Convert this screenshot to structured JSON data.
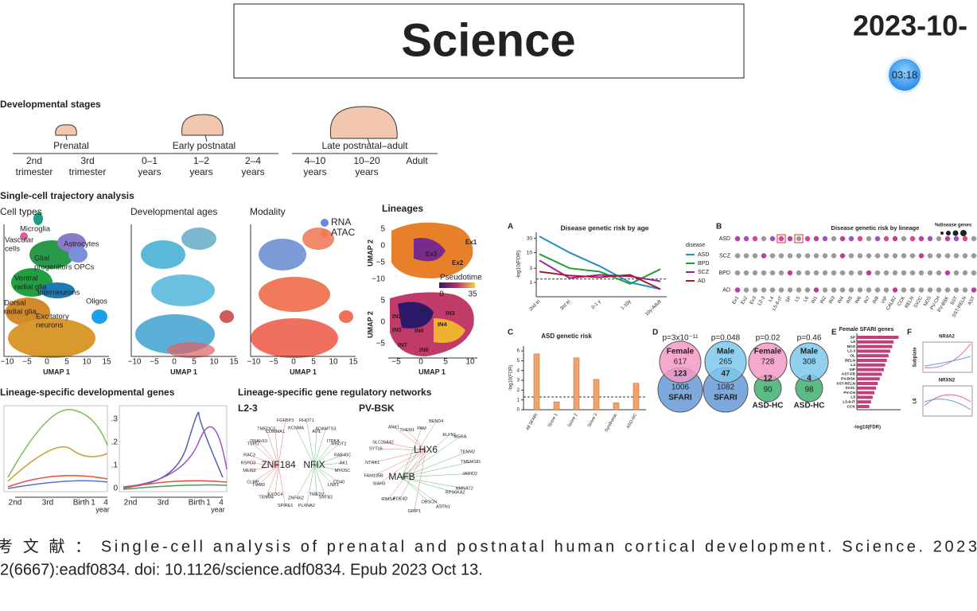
{
  "header": {
    "title": "Science",
    "date": "2023-10-",
    "timer": "03:18"
  },
  "stages": {
    "title": "Developmental stages",
    "groups": [
      {
        "label": "Prenatal",
        "items": [
          [
            "2nd",
            "trimester"
          ],
          [
            "3rd",
            "trimester"
          ]
        ]
      },
      {
        "label": "Early postnatal",
        "items": [
          [
            "0–1",
            "years"
          ],
          [
            "1–2",
            "years"
          ],
          [
            "2–4",
            "years"
          ]
        ]
      },
      {
        "label": "Late postnatal–adult",
        "items": [
          [
            "4–10",
            "years"
          ],
          [
            "10–20",
            "years"
          ],
          [
            "Adult"
          ]
        ]
      }
    ]
  },
  "trajectory": {
    "title": "Single-cell trajectory analysis",
    "panels": [
      "Cell types",
      "Developmental ages",
      "Modality",
      "Lineages"
    ],
    "cell_types": [
      [
        "Microglia"
      ],
      [
        "Vascular",
        "cells"
      ],
      [
        "Glial",
        "progenitors"
      ],
      [
        "Astrocytes"
      ],
      [
        "OPCs"
      ],
      [
        "Ventral",
        "radial glia"
      ],
      [
        "Interneurons"
      ],
      [
        "Oligos"
      ],
      [
        "Dorsal",
        "radial glia"
      ],
      [
        "Excitatory",
        "neurons"
      ]
    ],
    "modality": [
      "RNA",
      "ATAC"
    ],
    "umap_x": "UMAP 1",
    "umap_y": "UMAP 2",
    "umap_xticks": [
      "−10",
      "−5",
      "0",
      "5",
      "10",
      "15"
    ],
    "lineage_xticks": [
      "−5",
      "0",
      "5",
      "10"
    ],
    "lineage_top_yticks": [
      "5",
      "0",
      "−5",
      "−10"
    ],
    "lineage_bottom_yticks": [
      "5",
      "0",
      "−5"
    ],
    "lineage_top": [
      "Ex1",
      "Ex2",
      "Ex3"
    ],
    "lineage_bottom": [
      "IN1",
      "IN2",
      "IN3",
      "IN4",
      "IN5",
      "IN6",
      "IN7",
      "IN8"
    ],
    "pseudotime": {
      "label": "Pseudotime",
      "ticks": [
        "0",
        "35"
      ]
    }
  },
  "dev_genes": {
    "title": "Lineage-specific developmental genes",
    "xticks": [
      "2nd",
      "3rd",
      "Birth",
      "1",
      "4"
    ],
    "xunit": "year",
    "yticks": [
      ".3",
      ".2",
      ".1",
      "0"
    ]
  },
  "networks": {
    "title": "Lineage-specific gene regulatory networks",
    "panels": [
      {
        "label": "L2-3",
        "hubs": [
          "ZNF184",
          "NFIX"
        ],
        "genes": [
          "KCNMA",
          "RHOT1",
          "AVIL",
          "ADAMTS3",
          "ITPKA",
          "RHOT2",
          "RAB40C",
          "AK1",
          "MYO5C",
          "CD40",
          "LNX1",
          "SNTB2",
          "TMED2",
          "PLXNA2",
          "ZNF462",
          "SPIRE1",
          "EXOC4",
          "TENM4",
          "TIAM2",
          "CLMP",
          "MEIS2",
          "RSPO3",
          "RAC3",
          "TSPO",
          "DNAH10",
          "TMEDC3",
          "COMMA1",
          "FGFBP3"
        ]
      },
      {
        "label": "PV-BSK",
        "hubs": [
          "LHX6",
          "MAFB"
        ],
        "genes": [
          "PAM",
          "BEND4",
          "ELFN1",
          "MSRA",
          "TENM2",
          "TMEM181",
          "JARID2",
          "NMNAT2",
          "RPS6KA2",
          "ASTN1",
          "OBSCN",
          "GRIP1",
          "PDE4D",
          "RIMS4",
          "SIAH3",
          "FAM135B",
          "NTRK1",
          "SYT16",
          "SLC26A42",
          "ANK1",
          "THEM1"
        ]
      }
    ]
  },
  "figure": {
    "letters": [
      "A",
      "B",
      "C",
      "D",
      "E",
      "F"
    ],
    "lineage_risk": {
      "title": "Disease genetic risk by lineage",
      "size_legend": "%disease genes",
      "rows": [
        "ASD",
        "SCZ",
        "BPD",
        "AD"
      ],
      "columns": [
        "Ex1",
        "Ex2",
        "Ex3",
        "L2-3",
        "L4",
        "L5-6-IT",
        "SP",
        "L5",
        "L6",
        "IN1",
        "IN2",
        "IN3",
        "IN4",
        "IN5",
        "IN6",
        "IN7",
        "IN8",
        "VIP",
        "CALB2",
        "CCK",
        "RELN",
        "SV2C",
        "NOS",
        "PV-CH",
        "PV-BSK",
        "SST",
        "SST-RELN",
        "AST"
      ]
    },
    "venn": [
      {
        "p": "p=3x10⁻¹¹",
        "top": "Female",
        "top_n": "617",
        "overlap": "123",
        "bottom_n": "1006",
        "bottom": "SFARI"
      },
      {
        "p": "p=0.048",
        "top": "Male",
        "top_n": "265",
        "overlap": "47",
        "bottom_n": "1082",
        "bottom": "SFARI"
      },
      {
        "p": "p=0.02",
        "top": "Female",
        "top_n": "728",
        "overlap": "12",
        "bottom_n": "90",
        "bottom": "ASD-HC"
      },
      {
        "p": "p=0.46",
        "top": "Male",
        "top_n": "308",
        "overlap": "4",
        "bottom_n": "98",
        "bottom": "ASD-HC"
      }
    ],
    "trends": {
      "genes": [
        "NR4A2",
        "NRXN2"
      ],
      "rows": [
        "Subplate",
        "L6"
      ]
    }
  },
  "chart_data": [
    {
      "type": "line",
      "title": "Disease genetic risk by age",
      "categories": [
        "2nd tri",
        "3rd tri",
        "0-1 y",
        "1-10y",
        "10y-Adult"
      ],
      "y_label": "-log10(FDR)",
      "log_scale": true,
      "ylim": [
        0.4,
        40
      ],
      "yticks": [
        1,
        3,
        10,
        30
      ],
      "threshold": 1.3,
      "legend_title": "disease",
      "series": [
        {
          "name": "ASD",
          "color": "#1f8fc6",
          "values": [
            35,
            10,
            3.5,
            1,
            0.6
          ]
        },
        {
          "name": "BPD",
          "color": "#2a9a3a",
          "values": [
            9,
            3,
            2.3,
            0.9,
            2.8
          ]
        },
        {
          "name": "SCZ",
          "color": "#a020a0",
          "values": [
            5.5,
            1.4,
            1.8,
            1.6,
            1.1
          ]
        },
        {
          "name": "AD",
          "color": "#a0202a",
          "values": [
            2.3,
            1.7,
            1.5,
            1.8,
            0.6
          ]
        }
      ]
    },
    {
      "type": "bar",
      "title": "ASD genetic risk",
      "categories": [
        "All SFARI",
        "Score 1",
        "Score 2",
        "Score 3",
        "Syndromic",
        "ASD-HC"
      ],
      "values": [
        5.7,
        0.8,
        5.3,
        3.1,
        0.7,
        2.7
      ],
      "color": "#f2a36b",
      "y_label": "-log10(FDR)",
      "ylim": [
        0,
        6.5
      ],
      "yticks": [
        0,
        1,
        2,
        3,
        4,
        5,
        6
      ],
      "threshold": 1.3
    },
    {
      "type": "hbar",
      "title": "Female SFARI genes",
      "categories": [
        "SP",
        "L6",
        "NOS",
        "L2-3",
        "OL",
        "RELN",
        "L4",
        "VIP",
        "AST-FB",
        "PV-BSK",
        "SST-RELN",
        "SV2C",
        "PV-CH",
        "L5",
        "L5-6-IT",
        "CCK"
      ],
      "values": [
        10,
        8.8,
        8.5,
        8,
        7.6,
        7.2,
        6.8,
        6.5,
        6,
        5.5,
        5,
        4.6,
        4.2,
        3.8,
        3.4,
        3
      ],
      "color": "#c0407a",
      "x_label": "-log10(FDR)",
      "xlim": [
        0,
        10.5
      ]
    }
  ],
  "reference": {
    "lines": [
      "考 文 献 ：  Single-cell analysis of prenatal and postnatal human cortical development.  Science.  2023",
      "2(6667):eadf0834. doi: 10.1126/science.adf0834. Epub 2023 Oct 13."
    ]
  }
}
